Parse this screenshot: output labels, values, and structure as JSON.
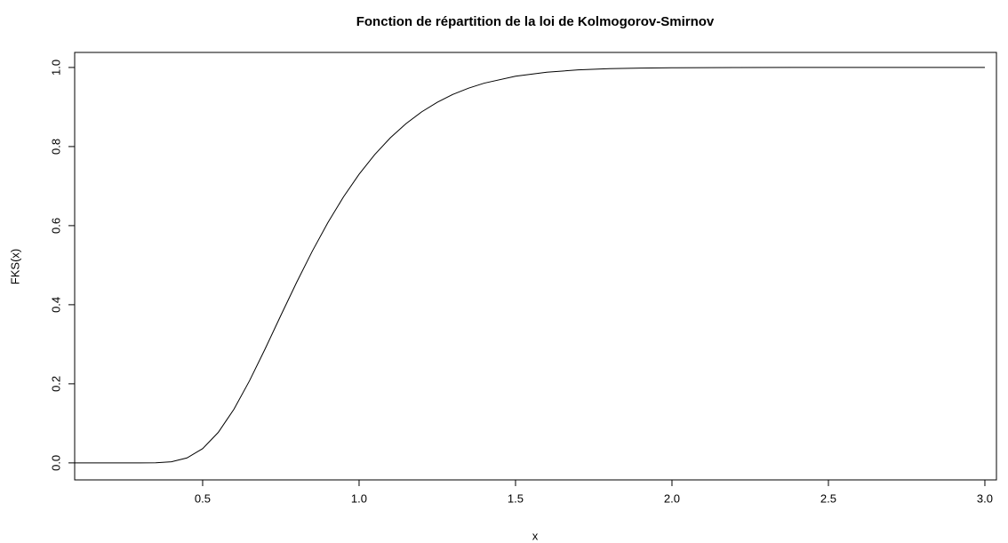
{
  "chart_data": {
    "type": "line",
    "title": "Fonction de répartition de la loi de Kolmogorov-Smirnov",
    "x_label": "x",
    "y_label": "FKS(x)",
    "x": [
      0.091,
      0.2,
      0.3,
      0.35,
      0.4,
      0.45,
      0.5,
      0.55,
      0.6,
      0.65,
      0.7,
      0.75,
      0.8,
      0.85,
      0.9,
      0.95,
      1.0,
      1.05,
      1.1,
      1.15,
      1.2,
      1.25,
      1.3,
      1.35,
      1.4,
      1.5,
      1.6,
      1.7,
      1.8,
      1.9,
      2.0,
      2.2,
      2.5,
      3.0
    ],
    "series": [
      {
        "name": "FKS",
        "color": "#000000",
        "values": [
          0,
          0,
          0,
          0.0003,
          0.0028,
          0.0126,
          0.0361,
          0.0772,
          0.1357,
          0.208,
          0.2888,
          0.3731,
          0.4559,
          0.5347,
          0.6073,
          0.6725,
          0.73,
          0.7797,
          0.8223,
          0.858,
          0.8877,
          0.9121,
          0.9319,
          0.9477,
          0.9603,
          0.9778,
          0.988,
          0.9938,
          0.9969,
          0.9985,
          0.9993,
          0.9999,
          1,
          1
        ]
      }
    ],
    "xlim": [
      0.091,
      3.037
    ],
    "ylim": [
      -0.043,
      1.038
    ],
    "xticks": [
      0.5,
      {
        "value": 1,
        "label": "1.0"
      },
      1.5,
      {
        "value": 2,
        "label": "2.0"
      },
      2.5,
      {
        "value": 3,
        "label": "3.0"
      }
    ],
    "yticks": [
      {
        "value": 0,
        "label": "0.0"
      },
      0.2,
      0.4,
      0.6,
      0.8,
      {
        "value": 1,
        "label": "1.0"
      }
    ],
    "grid": false
  }
}
